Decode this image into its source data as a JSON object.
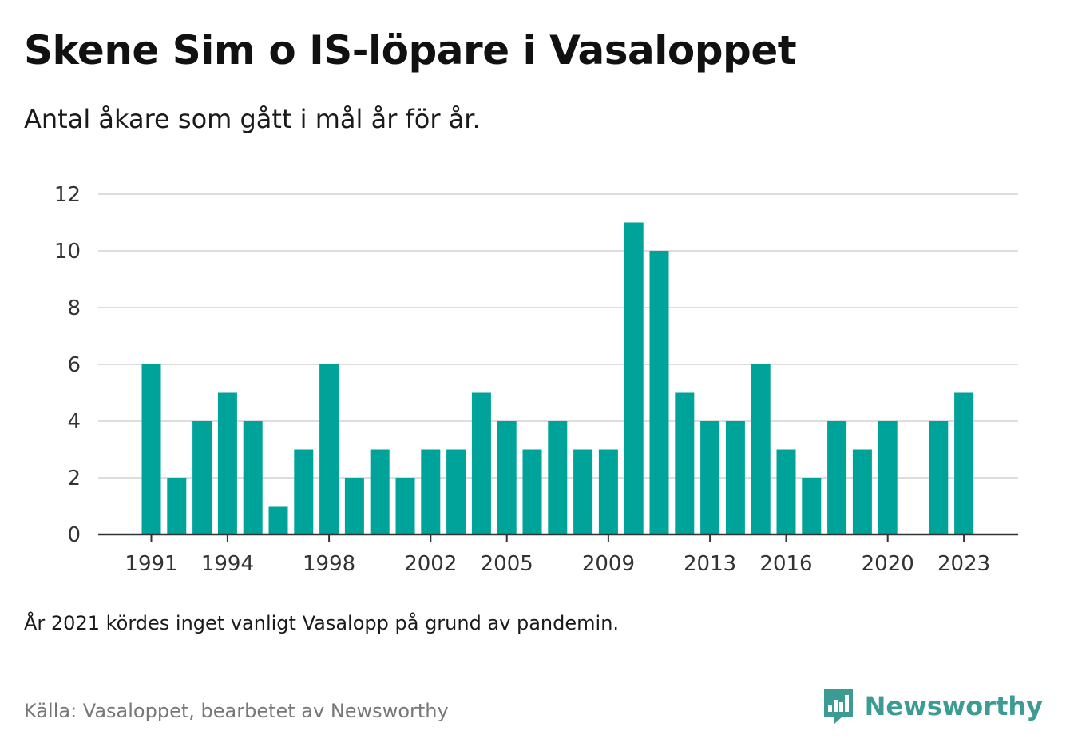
{
  "title": "Skene Sim o IS-löpare i Vasaloppet",
  "subtitle": "Antal åkare som gått i mål år för år.",
  "note": "År 2021 kördes inget vanligt Vasalopp på grund av pandemin.",
  "source": "Källa: Vasaloppet, bearbetet av Newsworthy",
  "brand": {
    "name": "Newsworthy",
    "icon": "newsworthy-logo-icon",
    "color": "#3c9c93"
  },
  "colors": {
    "bar": "#00a39a",
    "grid": "#dddddd",
    "axis": "#333333"
  },
  "chart_data": {
    "type": "bar",
    "title": "Skene Sim o IS-löpare i Vasaloppet",
    "subtitle": "Antal åkare som gått i mål år för år.",
    "xlabel": "",
    "ylabel": "",
    "ylim": [
      0,
      12
    ],
    "yticks": [
      0,
      2,
      4,
      6,
      8,
      10,
      12
    ],
    "xtick_labels": [
      "1991",
      "1994",
      "1998",
      "2002",
      "2005",
      "2009",
      "2013",
      "2016",
      "2020",
      "2023"
    ],
    "grid": true,
    "categories": [
      1991,
      1992,
      1993,
      1994,
      1995,
      1996,
      1997,
      1998,
      1999,
      2000,
      2001,
      2002,
      2003,
      2004,
      2005,
      2006,
      2007,
      2008,
      2009,
      2010,
      2011,
      2012,
      2013,
      2014,
      2015,
      2016,
      2017,
      2018,
      2019,
      2020,
      2021,
      2022,
      2023
    ],
    "values": [
      6,
      2,
      4,
      5,
      4,
      1,
      3,
      6,
      2,
      3,
      2,
      3,
      3,
      5,
      4,
      3,
      4,
      3,
      3,
      11,
      10,
      5,
      4,
      4,
      6,
      3,
      2,
      4,
      3,
      4,
      null,
      4,
      5
    ]
  }
}
